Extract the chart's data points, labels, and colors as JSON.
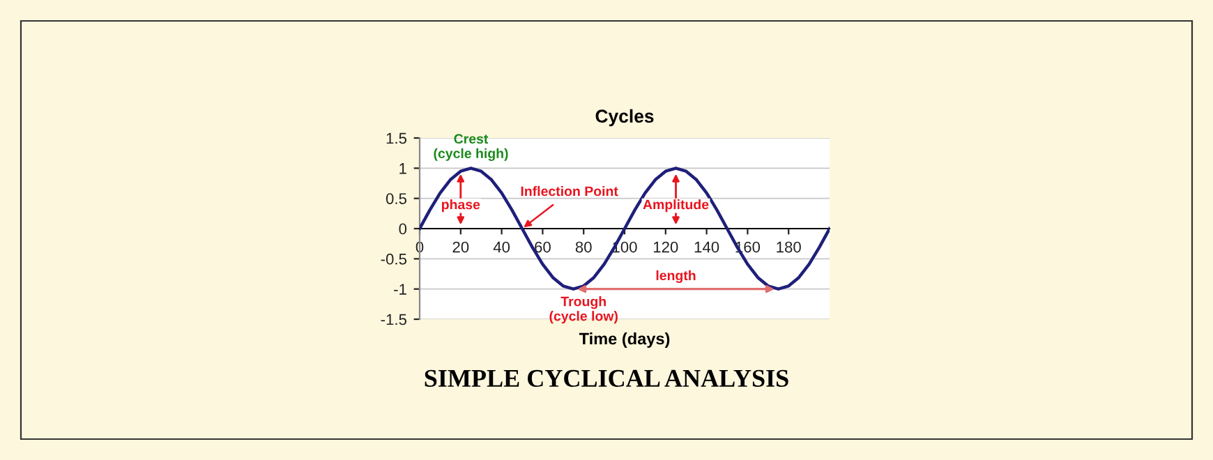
{
  "chart_data": {
    "type": "line",
    "title": "Cycles",
    "xlabel": "Time (days)",
    "x": [
      0,
      5,
      10,
      15,
      20,
      25,
      30,
      35,
      40,
      45,
      50,
      55,
      60,
      65,
      70,
      75,
      80,
      85,
      90,
      95,
      100,
      105,
      110,
      115,
      120,
      125,
      130,
      135,
      140,
      145,
      150,
      155,
      160,
      165,
      170,
      175,
      180,
      185,
      190,
      195,
      200
    ],
    "series": [
      {
        "color": "#1f1f7a",
        "values": [
          0,
          0.31,
          0.59,
          0.81,
          0.95,
          1,
          0.95,
          0.81,
          0.59,
          0.31,
          0,
          -0.31,
          -0.59,
          -0.81,
          -0.95,
          -1,
          -0.95,
          -0.81,
          -0.59,
          -0.31,
          0,
          0.31,
          0.59,
          0.81,
          0.95,
          1,
          0.95,
          0.81,
          0.59,
          0.31,
          0,
          -0.31,
          -0.59,
          -0.81,
          -0.95,
          -1,
          -0.95,
          -0.81,
          -0.59,
          -0.31,
          0
        ]
      }
    ],
    "xlim": [
      0,
      200
    ],
    "xticks": [
      0,
      20,
      40,
      60,
      80,
      100,
      120,
      140,
      160,
      180
    ],
    "ylim": [
      -1.5,
      1.5
    ],
    "yticks": [
      -1.5,
      -1,
      -0.5,
      0,
      0.5,
      1,
      1.5
    ],
    "grid": "y",
    "marker": "none",
    "line_style": "solid",
    "annotations": [
      {
        "text": "Crest\n(cycle high)",
        "x": 25,
        "y": 1
      },
      {
        "text": "phase",
        "x": 20,
        "y": 1
      },
      {
        "text": "Inflection Point",
        "x": 50,
        "y": 0
      },
      {
        "text": "Amplitude",
        "x": 125,
        "y": 1
      },
      {
        "text": "Trough\n(cycle low)",
        "x": 75,
        "y": -1
      },
      "length",
      "SIMPLE CYCLICAL ANALYSIS"
    ]
  }
}
